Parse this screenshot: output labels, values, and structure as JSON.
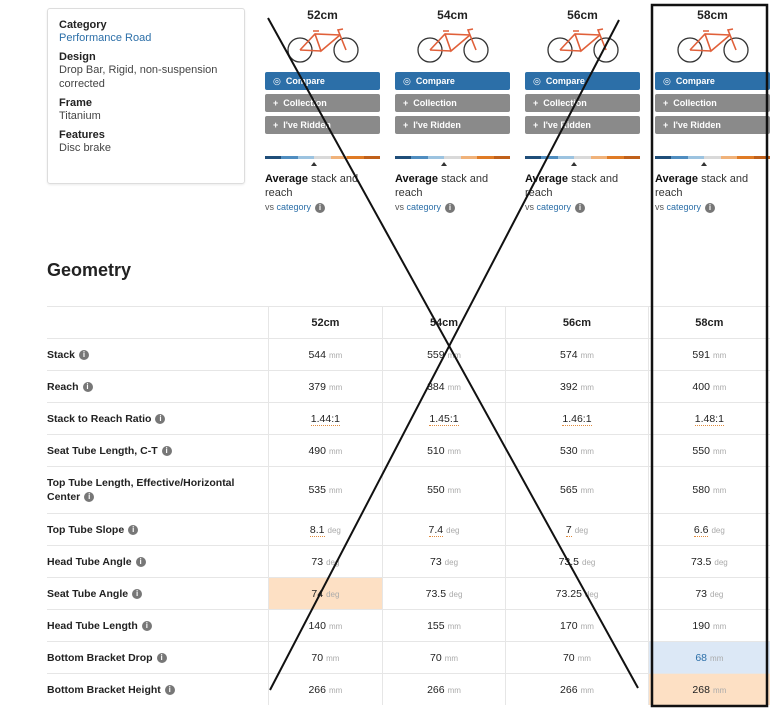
{
  "specs": [
    {
      "label": "Category",
      "value": "Performance Road"
    },
    {
      "label": "Design",
      "value": "Drop Bar, Rigid, non-suspension corrected"
    },
    {
      "label": "Frame",
      "value": "Titanium"
    },
    {
      "label": "Features",
      "value": "Disc brake"
    }
  ],
  "sizes": [
    "52cm",
    "54cm",
    "56cm",
    "58cm"
  ],
  "buttons": [
    "Compare",
    "Collection",
    "I've Ridden"
  ],
  "stack_reach": {
    "bold": "Average",
    "text": "stack and reach",
    "vs": "vs",
    "link": "category"
  },
  "geometry": {
    "title": "Geometry",
    "rows": [
      {
        "label": "Stack",
        "unit": "mm",
        "values": [
          544,
          559,
          574,
          591
        ]
      },
      {
        "label": "Reach",
        "unit": "mm",
        "values": [
          379,
          384,
          392,
          400
        ]
      },
      {
        "label": "Stack to Reach Ratio",
        "values": [
          "1.44:1",
          "1.45:1",
          "1.46:1",
          "1.48:1"
        ]
      },
      {
        "label": "Seat Tube Length, C-T",
        "unit": "mm",
        "values": [
          490,
          510,
          530,
          550
        ]
      },
      {
        "label": "Top Tube Length, Effective/Horizontal Center",
        "unit": "mm",
        "values": [
          535,
          550,
          565,
          580
        ]
      },
      {
        "label": "Top Tube Slope",
        "unit": "deg",
        "values": [
          8.1,
          7.4,
          7,
          6.6
        ]
      },
      {
        "label": "Head Tube Angle",
        "unit": "deg",
        "values": [
          73,
          73,
          73.5,
          73.5
        ]
      },
      {
        "label": "Seat Tube Angle",
        "unit": "deg",
        "values": [
          74,
          73.5,
          73.25,
          73
        ]
      },
      {
        "label": "Head Tube Length",
        "unit": "mm",
        "values": [
          140,
          155,
          170,
          190
        ]
      },
      {
        "label": "Bottom Bracket Drop",
        "unit": "mm",
        "values": [
          70,
          70,
          70,
          68
        ]
      },
      {
        "label": "Bottom Bracket Height",
        "unit": "mm",
        "values": [
          266,
          266,
          266,
          268
        ]
      }
    ]
  }
}
